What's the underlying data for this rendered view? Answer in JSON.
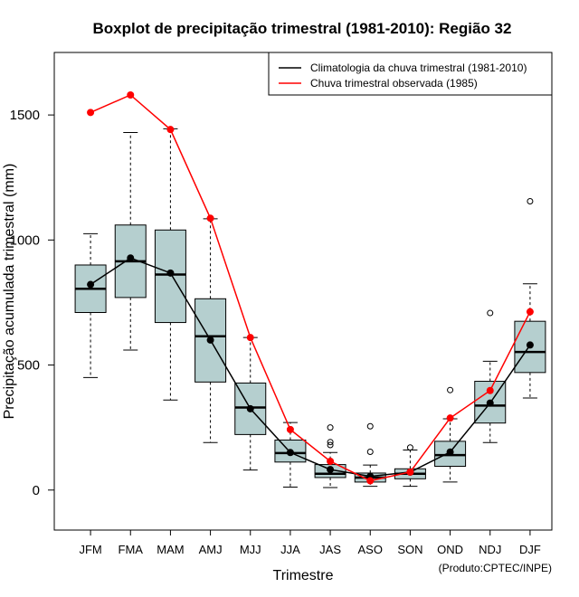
{
  "chart_data": {
    "type": "boxplot",
    "title": "Boxplot de precipitação trimestral (1981-2010): Região 32",
    "xlabel": "Trimestre",
    "ylabel": "Precipitação acumulada trimestral (mm)",
    "ylim": [
      -160,
      1750
    ],
    "yticks": [
      0,
      500,
      1000,
      1500
    ],
    "categories": [
      "JFM",
      "FMA",
      "MAM",
      "AMJ",
      "MJJ",
      "JJA",
      "JAS",
      "ASO",
      "SON",
      "OND",
      "NDJ",
      "DJF"
    ],
    "boxes": [
      {
        "min": 450,
        "q1": 710,
        "median": 805,
        "q3": 900,
        "max": 1025,
        "outliers": []
      },
      {
        "min": 560,
        "q1": 770,
        "median": 915,
        "q3": 1060,
        "max": 1430,
        "outliers": []
      },
      {
        "min": 360,
        "q1": 670,
        "median": 862,
        "q3": 1040,
        "max": 1445,
        "outliers": []
      },
      {
        "min": 190,
        "q1": 432,
        "median": 615,
        "q3": 765,
        "max": 1085,
        "outliers": []
      },
      {
        "min": 80,
        "q1": 222,
        "median": 330,
        "q3": 428,
        "max": 610,
        "outliers": []
      },
      {
        "min": 12,
        "q1": 112,
        "median": 148,
        "q3": 200,
        "max": 270,
        "outliers": []
      },
      {
        "min": 10,
        "q1": 50,
        "median": 65,
        "q3": 102,
        "max": 150,
        "outliers": [
          180,
          192,
          250
        ]
      },
      {
        "min": 15,
        "q1": 32,
        "median": 50,
        "q3": 68,
        "max": 100,
        "outliers": [
          153,
          255
        ]
      },
      {
        "min": 15,
        "q1": 45,
        "median": 65,
        "q3": 85,
        "max": 160,
        "outliers": [
          170
        ]
      },
      {
        "min": 32,
        "q1": 95,
        "median": 140,
        "q3": 195,
        "max": 285,
        "outliers": [
          400
        ]
      },
      {
        "min": 190,
        "q1": 268,
        "median": 338,
        "q3": 435,
        "max": 515,
        "outliers": [
          708
        ]
      },
      {
        "min": 368,
        "q1": 470,
        "median": 552,
        "q3": 675,
        "max": 825,
        "outliers": [
          1155
        ]
      }
    ],
    "series": [
      {
        "name": "Climatologia da chuva trimestral (1981-2010)",
        "color": "#000000",
        "values": [
          822,
          928,
          868,
          600,
          325,
          150,
          82,
          55,
          72,
          152,
          348,
          580
        ]
      },
      {
        "name": "Chuva trimestral observada (1985)",
        "color": "#ff0000",
        "values": [
          1510,
          1580,
          1442,
          1087,
          610,
          242,
          115,
          37,
          72,
          288,
          398,
          713
        ]
      }
    ],
    "box_color": "#b5cfcf",
    "credit": "(Produto:CPTEC/INPE)"
  }
}
